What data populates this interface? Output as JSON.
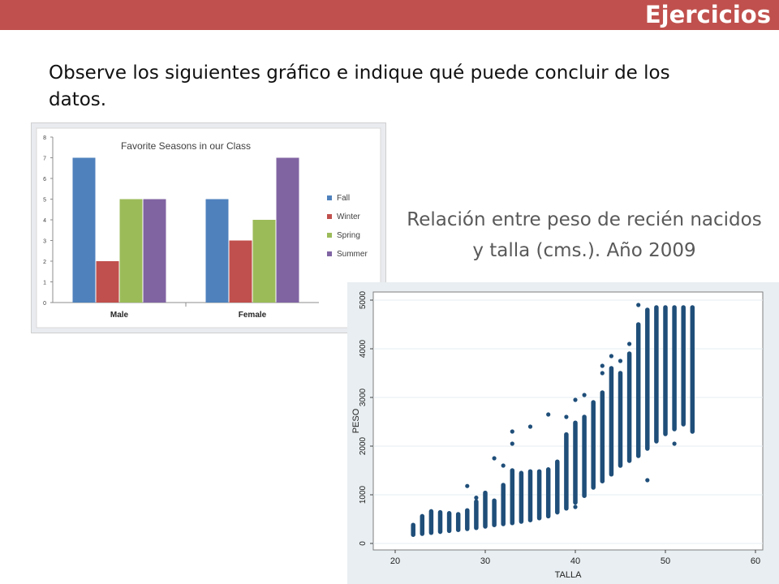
{
  "header": {
    "title": "Ejercicios"
  },
  "prompt": "Observe los siguientes gráfico e indique qué puede concluir de los datos.",
  "caption": "Relación entre peso de recién nacidos y talla (cms.). Año 2009",
  "colors": {
    "banner": "#c0504d",
    "Fall": "#4f81bd",
    "Winter": "#c0504d",
    "Spring": "#9bbb59",
    "Summer": "#8064a2",
    "scatter": "#1f4e79"
  },
  "chart_data": [
    {
      "type": "bar",
      "title": "Favorite Seasons in our Class",
      "categories": [
        "Male",
        "Female"
      ],
      "series": [
        {
          "name": "Fall",
          "values": [
            7,
            5
          ]
        },
        {
          "name": "Winter",
          "values": [
            2,
            3
          ]
        },
        {
          "name": "Spring",
          "values": [
            5,
            4
          ]
        },
        {
          "name": "Summer",
          "values": [
            5,
            7
          ]
        }
      ],
      "ylim": [
        0,
        8
      ],
      "yticks": [
        0,
        1,
        2,
        3,
        4,
        5,
        6,
        7,
        8
      ],
      "legend": "right",
      "grid": false
    },
    {
      "type": "scatter",
      "xlabel": "TALLA",
      "ylabel": "PESO",
      "xlim": [
        20,
        60
      ],
      "ylim": [
        0,
        5000
      ],
      "xticks": [
        20,
        30,
        40,
        50,
        60
      ],
      "yticks": [
        0,
        1000,
        2000,
        3000,
        4000,
        5000
      ],
      "grid": true,
      "columns": [
        {
          "x": 22,
          "ymin": 180,
          "ymax": 380
        },
        {
          "x": 23,
          "ymin": 200,
          "ymax": 560
        },
        {
          "x": 24,
          "ymin": 220,
          "ymax": 660
        },
        {
          "x": 25,
          "ymin": 240,
          "ymax": 640
        },
        {
          "x": 26,
          "ymin": 260,
          "ymax": 620
        },
        {
          "x": 27,
          "ymin": 280,
          "ymax": 600
        },
        {
          "x": 28,
          "ymin": 300,
          "ymax": 680
        },
        {
          "x": 29,
          "ymin": 320,
          "ymax": 860
        },
        {
          "x": 30,
          "ymin": 350,
          "ymax": 1040
        },
        {
          "x": 31,
          "ymin": 380,
          "ymax": 880
        },
        {
          "x": 32,
          "ymin": 400,
          "ymax": 1200
        },
        {
          "x": 33,
          "ymin": 420,
          "ymax": 1500
        },
        {
          "x": 34,
          "ymin": 450,
          "ymax": 1440
        },
        {
          "x": 35,
          "ymin": 480,
          "ymax": 1480
        },
        {
          "x": 36,
          "ymin": 520,
          "ymax": 1480
        },
        {
          "x": 37,
          "ymin": 560,
          "ymax": 1520
        },
        {
          "x": 38,
          "ymin": 640,
          "ymax": 1680
        },
        {
          "x": 39,
          "ymin": 720,
          "ymax": 2240
        },
        {
          "x": 40,
          "ymin": 840,
          "ymax": 2480
        },
        {
          "x": 41,
          "ymin": 980,
          "ymax": 2600
        },
        {
          "x": 42,
          "ymin": 1150,
          "ymax": 2900
        },
        {
          "x": 43,
          "ymin": 1280,
          "ymax": 3100
        },
        {
          "x": 44,
          "ymin": 1420,
          "ymax": 3600
        },
        {
          "x": 45,
          "ymin": 1600,
          "ymax": 3500
        },
        {
          "x": 46,
          "ymin": 1700,
          "ymax": 3900
        },
        {
          "x": 47,
          "ymin": 1800,
          "ymax": 4500
        },
        {
          "x": 48,
          "ymin": 1950,
          "ymax": 4800
        },
        {
          "x": 49,
          "ymin": 2100,
          "ymax": 4850
        },
        {
          "x": 50,
          "ymin": 2250,
          "ymax": 4850
        },
        {
          "x": 51,
          "ymin": 2350,
          "ymax": 4850
        },
        {
          "x": 52,
          "ymin": 2450,
          "ymax": 4850
        },
        {
          "x": 53,
          "ymin": 2300,
          "ymax": 4850
        }
      ],
      "outliers": [
        [
          28,
          1180
        ],
        [
          29,
          940
        ],
        [
          31,
          1750
        ],
        [
          32,
          1600
        ],
        [
          33,
          2050
        ],
        [
          33,
          2300
        ],
        [
          34,
          1450
        ],
        [
          35,
          2400
        ],
        [
          37,
          2650
        ],
        [
          39,
          2600
        ],
        [
          40,
          750
        ],
        [
          40,
          2950
        ],
        [
          41,
          3050
        ],
        [
          43,
          3500
        ],
        [
          43,
          3650
        ],
        [
          44,
          3850
        ],
        [
          45,
          3750
        ],
        [
          46,
          4100
        ],
        [
          47,
          4900
        ],
        [
          48,
          1300
        ],
        [
          51,
          2050
        ]
      ]
    }
  ]
}
